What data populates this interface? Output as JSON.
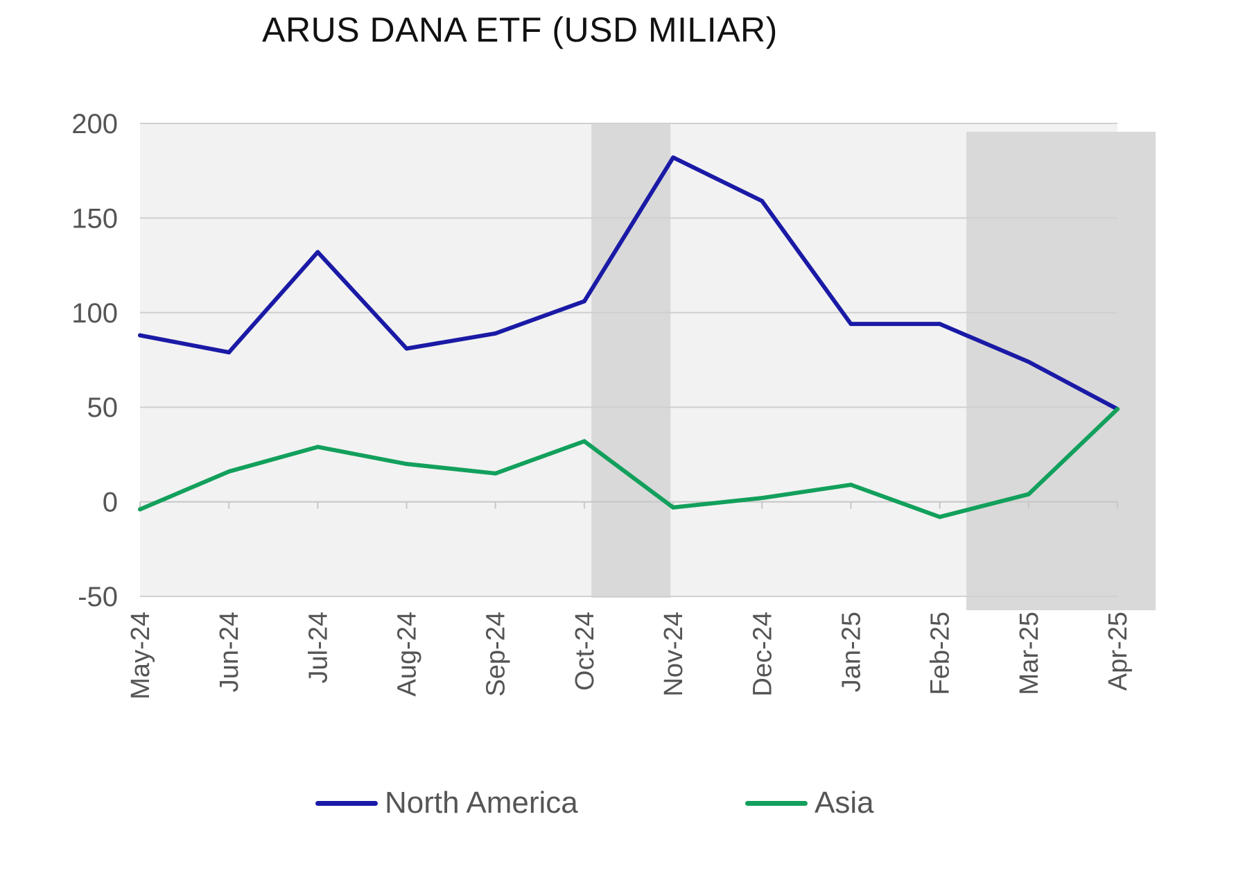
{
  "chart_data": {
    "type": "line",
    "title": "ARUS DANA ETF (USD MILIAR)",
    "xlabel": "",
    "ylabel": "",
    "ylim": [
      -50,
      200
    ],
    "yticks": [
      "200",
      "150",
      "100",
      "50",
      "0",
      "-50"
    ],
    "categories": [
      "May-24",
      "Jun-24",
      "Jul-24",
      "Aug-24",
      "Sep-24",
      "Oct-24",
      "Nov-24",
      "Dec-24",
      "Jan-25",
      "Feb-25",
      "Mar-25",
      "Apr-25"
    ],
    "shaded_periods": [
      {
        "from": "Oct-24",
        "to": "Nov-24"
      },
      {
        "from": "Feb-25",
        "to": "Apr-25"
      }
    ],
    "series": [
      {
        "name": "North America",
        "color": "#1a1aa6",
        "values": [
          88,
          79,
          132,
          81,
          89,
          106,
          182,
          159,
          94,
          94,
          74,
          49
        ]
      },
      {
        "name": "Asia",
        "color": "#12a05c",
        "values": [
          -4,
          16,
          29,
          20,
          15,
          32,
          -3,
          2,
          9,
          -8,
          4,
          49
        ]
      }
    ],
    "grid": true,
    "legend_position": "bottom"
  }
}
